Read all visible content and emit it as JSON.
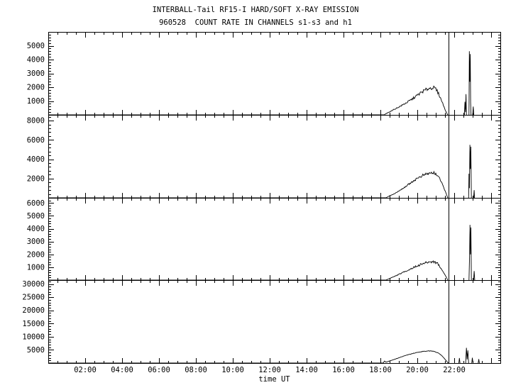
{
  "chart_data": {
    "type": "line",
    "title": "INTERBALL-Tail RF15-I HARD/SOFT X-RAY EMISSION",
    "subtitle": "960528  COUNT RATE IN CHANNELS s1-s3 and h1",
    "xlabel": "time UT",
    "x_unit": "hours UT",
    "xlim": [
      0,
      24.5
    ],
    "x_major_step": 2,
    "x_minor_step": 0.5,
    "x_ticks": [
      {
        "t": 2,
        "label": "02:00"
      },
      {
        "t": 4,
        "label": "04:00"
      },
      {
        "t": 6,
        "label": "06:00"
      },
      {
        "t": 8,
        "label": "08:00"
      },
      {
        "t": 10,
        "label": "10:00"
      },
      {
        "t": 12,
        "label": "12:00"
      },
      {
        "t": 14,
        "label": "14:00"
      },
      {
        "t": 16,
        "label": "16:00"
      },
      {
        "t": 18,
        "label": "18:00"
      },
      {
        "t": 20,
        "label": "20:00"
      },
      {
        "t": 22,
        "label": "22:00"
      }
    ],
    "event_line_t": 21.7,
    "grid": false,
    "legend": "none",
    "line_color": "#000000",
    "background_color": "#ffffff",
    "panels": [
      {
        "channel": "s1",
        "ylim": [
          0,
          6000
        ],
        "y_major_step": 1000,
        "y_minor_step": 200,
        "yticks": [
          1000,
          2000,
          3000,
          4000,
          5000
        ],
        "noise": 0.07,
        "main": [
          [
            0,
            0
          ],
          [
            18.2,
            0
          ],
          [
            18.35,
            120
          ],
          [
            18.55,
            260
          ],
          [
            18.8,
            430
          ],
          [
            19.1,
            640
          ],
          [
            19.4,
            870
          ],
          [
            19.7,
            1120
          ],
          [
            20.0,
            1420
          ],
          [
            20.3,
            1700
          ],
          [
            20.6,
            1900
          ],
          [
            20.85,
            1980
          ],
          [
            21.0,
            1870
          ],
          [
            21.15,
            1540
          ],
          [
            21.3,
            1080
          ],
          [
            21.45,
            580
          ],
          [
            21.55,
            240
          ],
          [
            21.65,
            0
          ]
        ],
        "bursts": [
          [
            [
              22.55,
              0
            ],
            [
              22.58,
              950
            ],
            [
              22.61,
              200
            ],
            [
              22.64,
              1500
            ],
            [
              22.66,
              0
            ]
          ],
          [
            [
              22.8,
              0
            ],
            [
              22.82,
              4600
            ],
            [
              22.845,
              2400
            ],
            [
              22.87,
              4400
            ],
            [
              22.89,
              900
            ],
            [
              22.91,
              0
            ]
          ],
          [
            [
              23.0,
              0
            ],
            [
              23.03,
              600
            ],
            [
              23.06,
              0
            ]
          ]
        ]
      },
      {
        "channel": "s2",
        "ylim": [
          0,
          8600
        ],
        "y_major_step": 2000,
        "y_minor_step": 400,
        "yticks": [
          2000,
          4000,
          6000,
          8000
        ],
        "noise": 0.06,
        "main": [
          [
            0,
            0
          ],
          [
            18.3,
            0
          ],
          [
            18.5,
            210
          ],
          [
            18.8,
            470
          ],
          [
            19.1,
            820
          ],
          [
            19.4,
            1220
          ],
          [
            19.7,
            1640
          ],
          [
            20.0,
            2030
          ],
          [
            20.3,
            2330
          ],
          [
            20.6,
            2520
          ],
          [
            20.9,
            2600
          ],
          [
            21.1,
            2340
          ],
          [
            21.25,
            1840
          ],
          [
            21.4,
            1180
          ],
          [
            21.55,
            530
          ],
          [
            21.65,
            0
          ]
        ],
        "bursts": [
          [
            [
              22.78,
              0
            ],
            [
              22.8,
              2500
            ],
            [
              22.825,
              1000
            ],
            [
              22.85,
              5500
            ],
            [
              22.875,
              3000
            ],
            [
              22.9,
              5300
            ],
            [
              22.93,
              0
            ]
          ],
          [
            [
              23.05,
              0
            ],
            [
              23.08,
              800
            ],
            [
              23.1,
              0
            ]
          ]
        ]
      },
      {
        "channel": "s3",
        "ylim": [
          0,
          6400
        ],
        "y_major_step": 1000,
        "y_minor_step": 200,
        "yticks": [
          1000,
          2000,
          3000,
          4000,
          5000,
          6000
        ],
        "noise": 0.07,
        "main": [
          [
            0,
            0
          ],
          [
            18.3,
            0
          ],
          [
            18.55,
            160
          ],
          [
            18.8,
            310
          ],
          [
            19.1,
            510
          ],
          [
            19.4,
            710
          ],
          [
            19.7,
            910
          ],
          [
            20.0,
            1110
          ],
          [
            20.3,
            1280
          ],
          [
            20.6,
            1400
          ],
          [
            20.9,
            1440
          ],
          [
            21.1,
            1290
          ],
          [
            21.25,
            990
          ],
          [
            21.4,
            640
          ],
          [
            21.55,
            290
          ],
          [
            21.65,
            0
          ]
        ],
        "bursts": [
          [
            [
              22.8,
              0
            ],
            [
              22.83,
              1800
            ],
            [
              22.855,
              4300
            ],
            [
              22.88,
              2000
            ],
            [
              22.905,
              4100
            ],
            [
              22.93,
              0
            ]
          ],
          [
            [
              23.05,
              0
            ],
            [
              23.08,
              700
            ],
            [
              23.11,
              0
            ]
          ]
        ]
      },
      {
        "channel": "h1",
        "ylim": [
          0,
          31500
        ],
        "y_major_step": 5000,
        "y_minor_step": 1000,
        "yticks": [
          5000,
          10000,
          15000,
          20000,
          25000,
          30000
        ],
        "noise": 0.022,
        "main": [
          [
            0,
            0
          ],
          [
            18.15,
            0
          ],
          [
            18.22,
            750
          ],
          [
            18.3,
            350
          ],
          [
            18.5,
            800
          ],
          [
            18.8,
            1500
          ],
          [
            19.1,
            2250
          ],
          [
            19.4,
            2950
          ],
          [
            19.7,
            3550
          ],
          [
            20.0,
            4050
          ],
          [
            20.3,
            4400
          ],
          [
            20.6,
            4600
          ],
          [
            20.9,
            4450
          ],
          [
            21.1,
            3950
          ],
          [
            21.3,
            3000
          ],
          [
            21.45,
            1850
          ],
          [
            21.6,
            600
          ],
          [
            21.68,
            0
          ]
        ],
        "bursts": [
          [
            [
              22.25,
              0
            ],
            [
              22.28,
              1900
            ],
            [
              22.31,
              0
            ]
          ],
          [
            [
              22.62,
              0
            ],
            [
              22.66,
              5800
            ],
            [
              22.7,
              1400
            ],
            [
              22.74,
              4800
            ],
            [
              22.78,
              0
            ]
          ],
          [
            [
              22.95,
              0
            ],
            [
              22.98,
              2000
            ],
            [
              23.02,
              0
            ]
          ],
          [
            [
              23.3,
              0
            ],
            [
              23.33,
              1500
            ],
            [
              23.36,
              0
            ]
          ]
        ]
      }
    ]
  }
}
